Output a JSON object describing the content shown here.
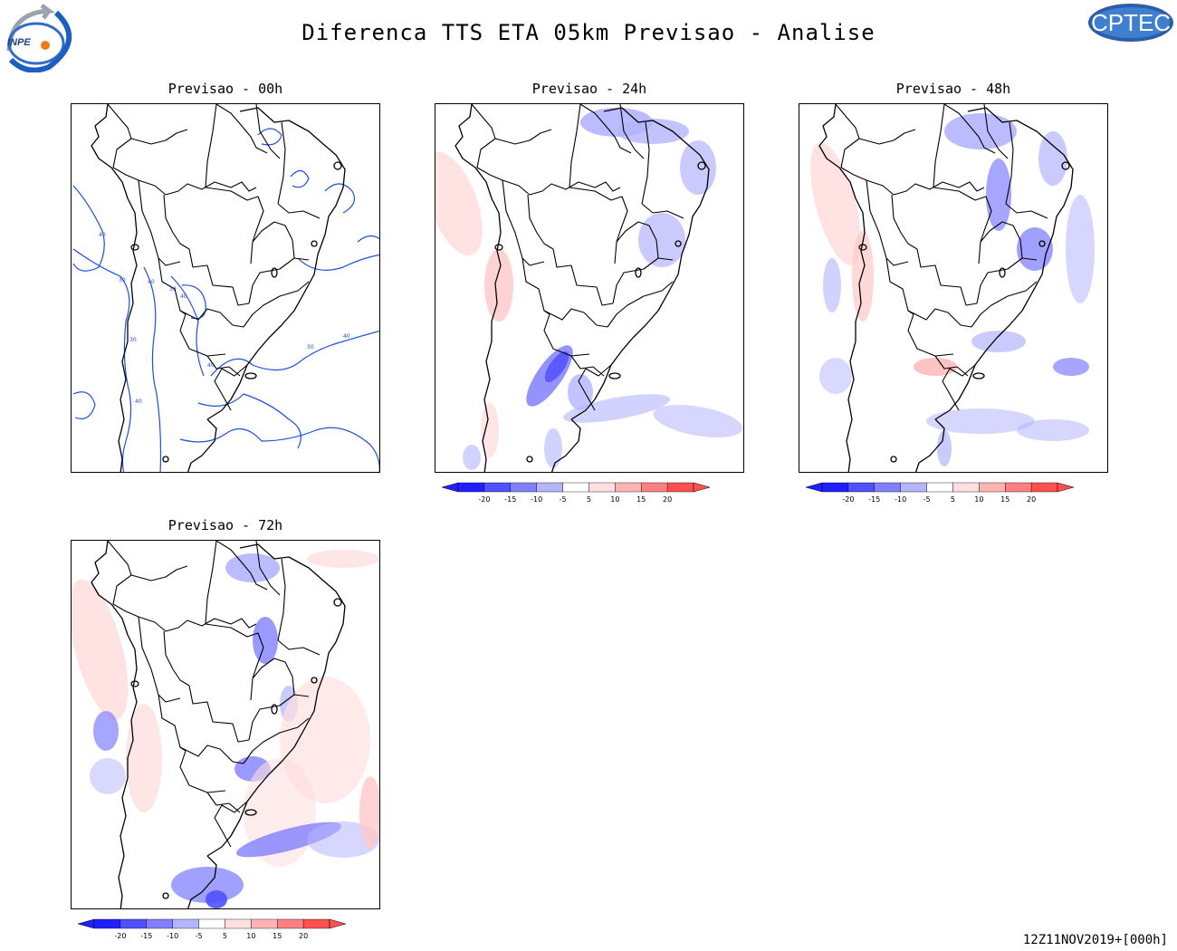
{
  "header": {
    "title": "Diferenca TTS ETA 05km Previsao - Analise",
    "left_logo_text": "INPE",
    "right_logo_text": "CPTEC"
  },
  "panels": [
    {
      "label": "Previsao - 00h",
      "kind": "contour",
      "contour_labels": [
        "40",
        "30",
        "40",
        "30",
        "40",
        "30",
        "40",
        "40",
        "30",
        "40"
      ]
    },
    {
      "label": "Previsao - 24h",
      "kind": "shaded"
    },
    {
      "label": "Previsao - 48h",
      "kind": "shaded"
    },
    {
      "label": "Previsao - 72h",
      "kind": "shaded"
    }
  ],
  "colorbar": {
    "ticks": [
      "-20",
      "-15",
      "-10",
      "-5",
      "5",
      "10",
      "15",
      "20"
    ],
    "colors": [
      "#1f1fff",
      "#5050ff",
      "#8080ff",
      "#b4b4ff",
      "#ffffff",
      "#ffe0e0",
      "#ffb4b4",
      "#ff8080",
      "#ff5050"
    ]
  },
  "footer": {
    "stamp": "12Z11NOV2019+[000h]"
  }
}
